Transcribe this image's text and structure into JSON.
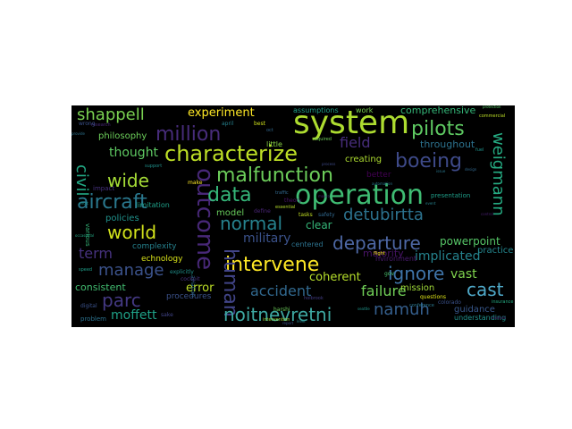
{
  "words": [
    {
      "text": "operation",
      "color": "#3fbc73"
    },
    {
      "text": "system",
      "color": "#addc30"
    },
    {
      "text": "intervene",
      "color": "#fde725"
    },
    {
      "text": "malfunction",
      "color": "#6ccd5a"
    },
    {
      "text": "characterize",
      "color": "#bddf26"
    },
    {
      "text": "million",
      "color": "#472c7a"
    },
    {
      "text": "aircraft",
      "color": "#2a788e"
    },
    {
      "text": "boeing",
      "color": "#3e4a89"
    },
    {
      "text": "departure",
      "color": "#4e68a5"
    },
    {
      "text": "pilots",
      "color": "#5ec962"
    },
    {
      "text": "detubirtta",
      "color": "#2c728e"
    },
    {
      "text": "world",
      "color": "#d2e21b"
    },
    {
      "text": "outcome",
      "color": "#482878"
    },
    {
      "text": "data",
      "color": "#35b779"
    },
    {
      "text": "manage",
      "color": "#3b528b"
    },
    {
      "text": "normal",
      "color": "#26828e"
    },
    {
      "text": "human",
      "color": "#414487"
    },
    {
      "text": "wide",
      "color": "#a5db36"
    },
    {
      "text": "noitnevretni",
      "color": "#3ea8a2"
    },
    {
      "text": "parc",
      "color": "#443983"
    },
    {
      "text": "weigmann",
      "color": "#25ab82"
    },
    {
      "text": "cast",
      "color": "#4fa9c9"
    },
    {
      "text": "shappell",
      "color": "#7ad151"
    },
    {
      "text": "ignore",
      "color": "#3f74a8"
    },
    {
      "text": "namuh",
      "color": "#355f8d"
    },
    {
      "text": "term",
      "color": "#46327e"
    },
    {
      "text": "military",
      "color": "#3b528b"
    },
    {
      "text": "accident",
      "color": "#31688e"
    },
    {
      "text": "civil",
      "color": "#22a884"
    },
    {
      "text": "thought",
      "color": "#5ec962"
    },
    {
      "text": "field",
      "color": "#472d7b"
    },
    {
      "text": "failure",
      "color": "#70cf57"
    },
    {
      "text": "experiment",
      "color": "#fde725"
    },
    {
      "text": "moffett",
      "color": "#1fa187"
    },
    {
      "text": "implicated",
      "color": "#25838e"
    },
    {
      "text": "coherent",
      "color": "#b5de2b"
    },
    {
      "text": "vast",
      "color": "#7fd34e"
    },
    {
      "text": "consistent",
      "color": "#42be71"
    },
    {
      "text": "error",
      "color": "#bddf26"
    },
    {
      "text": "clear",
      "color": "#35b779"
    },
    {
      "text": "powerpoint",
      "color": "#56c667"
    },
    {
      "text": "comprehensive",
      "color": "#35b779"
    },
    {
      "text": "throughout",
      "color": "#2c728e"
    },
    {
      "text": "philosophy",
      "color": "#6ccd5a"
    },
    {
      "text": "creating",
      "color": "#addc30"
    },
    {
      "text": "mission",
      "color": "#a0da39"
    },
    {
      "text": "guidance",
      "color": "#38588c"
    },
    {
      "text": "practice",
      "color": "#24868e"
    },
    {
      "text": "policies",
      "color": "#20928c"
    },
    {
      "text": "model",
      "color": "#67cc5c"
    },
    {
      "text": "complexity",
      "color": "#26828e"
    },
    {
      "text": "echnology",
      "color": "#d8e219"
    },
    {
      "text": "majority",
      "color": "#481467"
    },
    {
      "text": "understanding",
      "color": "#21918c"
    },
    {
      "text": "procedures",
      "color": "#3b528b"
    },
    {
      "text": "centered",
      "color": "#2c728e"
    },
    {
      "text": "assumptions",
      "color": "#1f9f88"
    },
    {
      "text": "work",
      "color": "#7ad151"
    },
    {
      "text": "better",
      "color": "#440154"
    },
    {
      "text": "presentation",
      "color": "#1f9e89"
    },
    {
      "text": "limitation",
      "color": "#1f9f88"
    },
    {
      "text": "various",
      "color": "#35b779"
    },
    {
      "text": "impact",
      "color": "#46327e"
    },
    {
      "text": "little",
      "color": "#8bd646"
    },
    {
      "text": "problem",
      "color": "#2c728e"
    },
    {
      "text": "digital",
      "color": "#3b528b"
    },
    {
      "text": "research",
      "color": "#482878"
    },
    {
      "text": "define",
      "color": "#482475"
    },
    {
      "text": "theory",
      "color": "#471365"
    },
    {
      "text": "tasks",
      "color": "#c2df23"
    },
    {
      "text": "safety",
      "color": "#31688e"
    },
    {
      "text": "questions",
      "color": "#dde318"
    },
    {
      "text": "commercial",
      "color": "#bddf26"
    },
    {
      "text": "essential",
      "color": "#b5de2b"
    },
    {
      "text": "required",
      "color": "#6ece58"
    },
    {
      "text": "sake",
      "color": "#414487"
    },
    {
      "text": "make",
      "color": "#fde725"
    },
    {
      "text": "aviation",
      "color": "#2d708e"
    },
    {
      "text": "april",
      "color": "#26828e"
    },
    {
      "text": "best",
      "color": "#d0e11c"
    },
    {
      "text": "oct",
      "color": "#31688e"
    },
    {
      "text": "gov",
      "color": "#4ac16d"
    },
    {
      "text": "fuel",
      "color": "#20928c"
    },
    {
      "text": "cockpit",
      "color": "#46337f"
    },
    {
      "text": "wrong",
      "color": "#3b528b"
    },
    {
      "text": "nvironment",
      "color": "#481b6d"
    },
    {
      "text": "explicitly",
      "color": "#21918c"
    },
    {
      "text": "flight",
      "color": "#fde725"
    },
    {
      "text": "harshi",
      "color": "#6ccd5a"
    },
    {
      "text": "traffic",
      "color": "#31688e"
    },
    {
      "text": "speed",
      "color": "#1f9e89"
    },
    {
      "text": "colorado",
      "color": "#3b528b"
    },
    {
      "text": "holbrook",
      "color": "#433d84"
    },
    {
      "text": "conference",
      "color": "#2a788e"
    },
    {
      "text": "insurance",
      "color": "#25ab82"
    },
    {
      "text": "intervention",
      "color": "#a0da39"
    },
    {
      "text": "provide",
      "color": "#2c728e"
    },
    {
      "text": "protection",
      "color": "#56c667"
    },
    {
      "text": "support",
      "color": "#20928c"
    },
    {
      "text": "mauro",
      "color": "#482374"
    },
    {
      "text": "occasional",
      "color": "#22a884"
    },
    {
      "text": "seattle",
      "color": "#1f968b"
    },
    {
      "text": "automation",
      "color": "#2a788e"
    },
    {
      "text": "process",
      "color": "#3e4a89"
    },
    {
      "text": "history",
      "color": "#482878"
    },
    {
      "text": "design",
      "color": "#31688e"
    },
    {
      "text": "control",
      "color": "#481f70"
    },
    {
      "text": "effort",
      "color": "#20928c"
    },
    {
      "text": "level",
      "color": "#25858e"
    },
    {
      "text": "report",
      "color": "#3b528b"
    },
    {
      "text": "event",
      "color": "#26828e"
    },
    {
      "text": "issue",
      "color": "#2a788e"
    },
    {
      "text": "analysis",
      "color": "#481467"
    }
  ]
}
